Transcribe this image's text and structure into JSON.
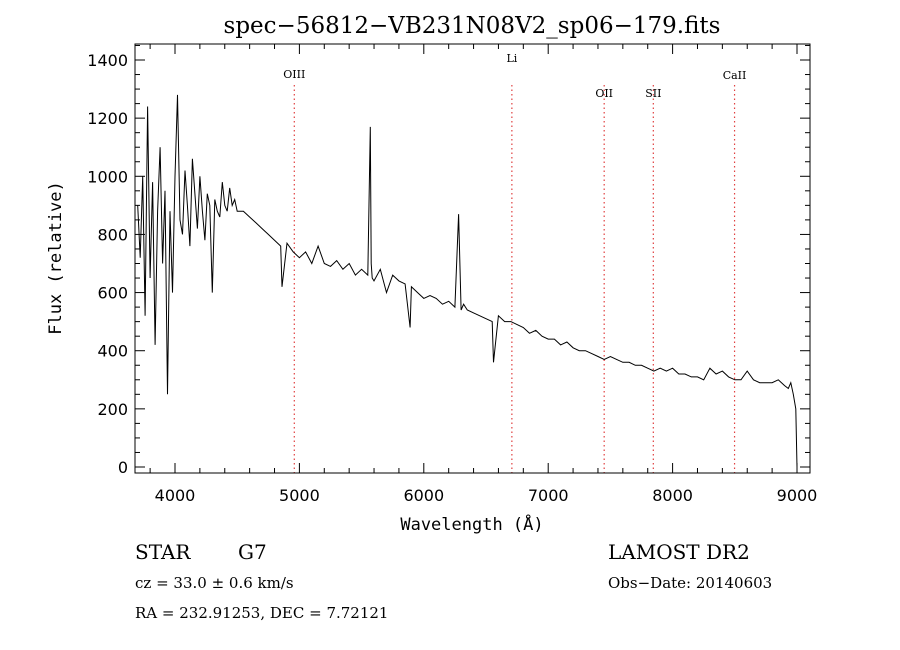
{
  "chart_data": {
    "type": "line",
    "title": "spec−56812−VB231N08V2_sp06−179.fits",
    "xlabel": "Wavelength (Å)",
    "ylabel": "Flux (relative)",
    "xlim": [
      3700,
      9100
    ],
    "ylim": [
      0,
      1450
    ],
    "xticks": [
      4000,
      5000,
      6000,
      7000,
      8000,
      9000
    ],
    "yticks": [
      0,
      200,
      400,
      600,
      800,
      1000,
      1200,
      1400
    ],
    "grid": false,
    "line_color": "#000000",
    "marker_color": "#e04040",
    "lines": [
      {
        "label": "OIII",
        "wavelength": 4959
      },
      {
        "label": "Li",
        "wavelength": 6708
      },
      {
        "label": "OII",
        "wavelength": 7450
      },
      {
        "label": "SII",
        "wavelength": 7845
      },
      {
        "label": "CaII",
        "wavelength": 8498
      }
    ],
    "series": [
      {
        "x": [
          3700,
          3720,
          3740,
          3760,
          3780,
          3800,
          3820,
          3840,
          3860,
          3880,
          3900,
          3920,
          3940,
          3960,
          3980,
          4000,
          4020,
          4040,
          4060,
          4080,
          4100,
          4120,
          4140,
          4160,
          4180,
          4200,
          4220,
          4240,
          4260,
          4280,
          4300,
          4320,
          4340,
          4360,
          4380,
          4400,
          4420,
          4440,
          4460,
          4480,
          4500,
          4550,
          4600,
          4650,
          4700,
          4750,
          4800,
          4850,
          4860,
          4900,
          4950,
          5000,
          5050,
          5100,
          5150,
          5200,
          5250,
          5300,
          5350,
          5400,
          5450,
          5500,
          5550,
          5570,
          5577,
          5585,
          5600,
          5650,
          5700,
          5750,
          5800,
          5850,
          5890,
          5900,
          5950,
          6000,
          6050,
          6100,
          6150,
          6200,
          6250,
          6280,
          6300,
          6320,
          6350,
          6400,
          6450,
          6500,
          6550,
          6560,
          6600,
          6650,
          6700,
          6750,
          6800,
          6850,
          6900,
          6950,
          7000,
          7050,
          7100,
          7150,
          7200,
          7250,
          7300,
          7350,
          7400,
          7450,
          7500,
          7550,
          7600,
          7650,
          7700,
          7750,
          7800,
          7850,
          7900,
          7950,
          8000,
          8050,
          8100,
          8150,
          8200,
          8250,
          8300,
          8350,
          8400,
          8450,
          8500,
          8550,
          8600,
          8650,
          8700,
          8750,
          8800,
          8850,
          8900,
          8930,
          8950,
          8970,
          8990,
          9000
        ],
        "y": [
          900,
          720,
          1000,
          520,
          1240,
          650,
          980,
          420,
          880,
          1100,
          700,
          950,
          250,
          880,
          600,
          1000,
          1280,
          850,
          800,
          1020,
          900,
          760,
          1060,
          940,
          820,
          1000,
          880,
          780,
          940,
          900,
          600,
          920,
          880,
          860,
          980,
          900,
          880,
          960,
          900,
          920,
          880,
          880,
          860,
          840,
          820,
          800,
          780,
          760,
          620,
          770,
          740,
          720,
          740,
          700,
          760,
          700,
          690,
          710,
          680,
          700,
          660,
          680,
          660,
          1170,
          700,
          650,
          640,
          680,
          600,
          660,
          640,
          630,
          480,
          620,
          600,
          580,
          590,
          580,
          560,
          570,
          550,
          870,
          540,
          560,
          540,
          530,
          520,
          510,
          500,
          360,
          520,
          500,
          500,
          490,
          480,
          460,
          470,
          450,
          440,
          440,
          420,
          430,
          410,
          400,
          400,
          390,
          380,
          370,
          380,
          370,
          360,
          360,
          350,
          350,
          340,
          330,
          340,
          330,
          340,
          320,
          320,
          310,
          310,
          300,
          340,
          320,
          330,
          310,
          300,
          300,
          330,
          300,
          290,
          290,
          290,
          300,
          280,
          270,
          290,
          250,
          200,
          0
        ]
      }
    ]
  },
  "info": {
    "object_class": "STAR",
    "subclass": "G7",
    "survey": "LAMOST DR2",
    "redshift_line": "cz = 33.0 ± 0.6 km/s",
    "obs_date_line": "Obs−Date: 20140603",
    "coords_line": "RA = 232.91253, DEC =   7.72121"
  }
}
